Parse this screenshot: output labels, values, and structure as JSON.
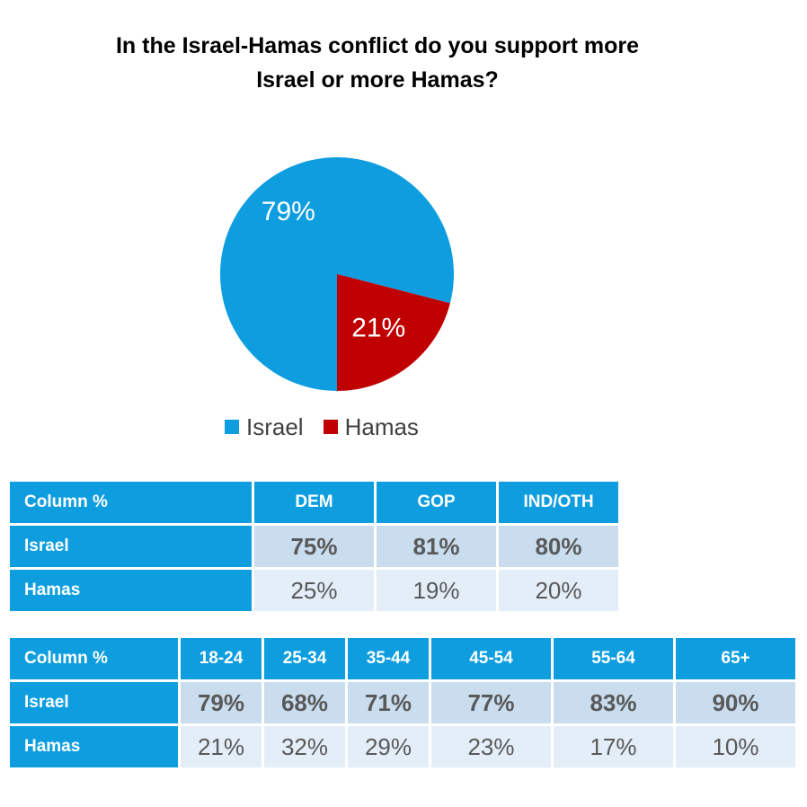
{
  "title_line1": "In the Israel-Hamas conflict do you support more",
  "title_line2": "Israel or more Hamas?",
  "colors": {
    "israel": "#0e9ee0",
    "hamas": "#c00000"
  },
  "chart_data": {
    "type": "pie",
    "title": "In the Israel-Hamas conflict do you support more Israel or more Hamas?",
    "slices": [
      {
        "name": "Israel",
        "value": 79,
        "label": "79%"
      },
      {
        "name": "Hamas",
        "value": 21,
        "label": "21%"
      }
    ],
    "legend_position": "bottom"
  },
  "table1": {
    "corner": "Column %",
    "headers": [
      "DEM",
      "GOP",
      "IND/OTH"
    ],
    "rows": [
      {
        "label": "Israel",
        "values": [
          "75%",
          "81%",
          "80%"
        ]
      },
      {
        "label": "Hamas",
        "values": [
          "25%",
          "19%",
          "20%"
        ]
      }
    ]
  },
  "table2": {
    "corner": "Column %",
    "headers": [
      "18-24",
      "25-34",
      "35-44",
      "45-54",
      "55-64",
      "65+"
    ],
    "rows": [
      {
        "label": "Israel",
        "values": [
          "79%",
          "68%",
          "71%",
          "77%",
          "83%",
          "90%"
        ]
      },
      {
        "label": "Hamas",
        "values": [
          "21%",
          "32%",
          "29%",
          "23%",
          "17%",
          "10%"
        ]
      }
    ]
  }
}
